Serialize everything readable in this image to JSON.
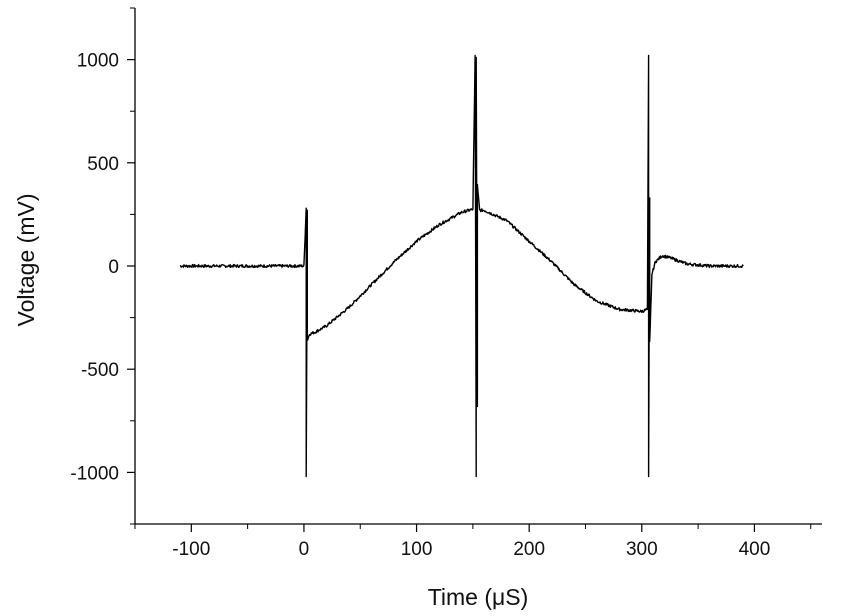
{
  "chart_data": {
    "type": "line",
    "xlabel": "Time (μS)",
    "ylabel": "Voltage (mV)",
    "xlim": [
      -150,
      460
    ],
    "ylim": [
      -1250,
      1250
    ],
    "xticks": [
      -100,
      0,
      100,
      200,
      300,
      400
    ],
    "yticks": [
      -1000,
      -500,
      0,
      500,
      1000
    ],
    "xtick_labels": [
      "-100",
      "0",
      "100",
      "200",
      "300",
      "400"
    ],
    "ytick_labels": [
      "-1000",
      "-500",
      "0",
      "500",
      "1000"
    ],
    "grid": false,
    "legend": "none",
    "line_color": "#000000",
    "series": [
      {
        "x": [
          -110,
          -60,
          -10,
          0,
          2,
          2,
          3,
          3,
          5,
          10,
          20,
          40,
          60,
          80,
          100,
          120,
          140,
          150,
          152,
          153,
          153,
          154,
          154,
          156,
          160,
          180,
          200,
          220,
          240,
          260,
          280,
          300,
          305,
          306,
          306,
          307,
          307,
          309,
          312,
          318,
          325,
          340,
          360,
          390
        ],
        "y": [
          0,
          0,
          0,
          0,
          280,
          -1020,
          270,
          -360,
          -330,
          -320,
          -290,
          -200,
          -90,
          20,
          120,
          200,
          260,
          275,
          1020,
          -1020,
          1010,
          -680,
          390,
          270,
          270,
          220,
          120,
          20,
          -90,
          -170,
          -210,
          -220,
          -210,
          1020,
          -1020,
          330,
          -370,
          -40,
          20,
          50,
          40,
          10,
          0,
          0
        ]
      }
    ]
  }
}
